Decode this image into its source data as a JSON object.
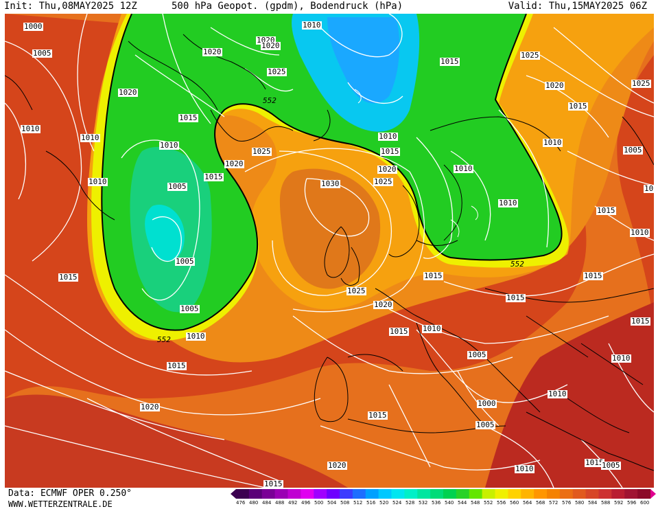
{
  "header": {
    "init": "Init: Thu,08MAY2025 12Z",
    "title": "500 hPa Geopot. (gpdm), Bodendruck (hPa)",
    "valid": "Valid: Thu,15MAY2025 06Z"
  },
  "footer": {
    "data_source": "Data: ECMWF OPER 0.250°",
    "website": "WWW.WETTERZENTRALE.DE"
  },
  "colorbar": {
    "labels": [
      "476",
      "480",
      "484",
      "488",
      "492",
      "496",
      "500",
      "504",
      "508",
      "512",
      "516",
      "520",
      "524",
      "528",
      "532",
      "536",
      "540",
      "544",
      "548",
      "552",
      "556",
      "560",
      "564",
      "568",
      "572",
      "576",
      "580",
      "584",
      "588",
      "592",
      "596",
      "600"
    ],
    "colors": [
      "#3c0050",
      "#5a0078",
      "#7a0096",
      "#9b00b4",
      "#c000d2",
      "#e000f0",
      "#a000ff",
      "#6e00ff",
      "#3c3cff",
      "#1e6eff",
      "#00a0ff",
      "#00c8ff",
      "#00e6f0",
      "#00f0c8",
      "#00e6a0",
      "#00dc78",
      "#00d250",
      "#28d228",
      "#64e600",
      "#c8f000",
      "#f0f000",
      "#ffd200",
      "#ffb400",
      "#ff9600",
      "#f58200",
      "#eb6e14",
      "#e15a1e",
      "#d74628",
      "#cd3232",
      "#b91e32",
      "#a01432",
      "#8c0a28"
    ]
  },
  "map": {
    "contour_552_label": "552",
    "pressure_labels": [
      {
        "text": "1000",
        "k": "a"
      },
      {
        "text": "1005",
        "k": "b"
      },
      {
        "text": "1020",
        "k": "c"
      },
      {
        "text": "1010",
        "k": "d"
      },
      {
        "text": "1010",
        "k": "e"
      },
      {
        "text": "1010",
        "k": "f"
      },
      {
        "text": "1015",
        "k": "g"
      },
      {
        "text": "1010",
        "k": "h"
      },
      {
        "text": "1005",
        "k": "i"
      },
      {
        "text": "1015",
        "k": "j"
      },
      {
        "text": "1005",
        "k": "k"
      },
      {
        "text": "1005",
        "k": "l"
      },
      {
        "text": "1010",
        "k": "m"
      },
      {
        "text": "1015",
        "k": "n"
      },
      {
        "text": "1020",
        "k": "o"
      },
      {
        "text": "1020",
        "k": "p"
      },
      {
        "text": "1010",
        "k": "q"
      },
      {
        "text": "1020",
        "k": "r"
      },
      {
        "text": "1020",
        "k": "s"
      },
      {
        "text": "1025",
        "k": "t"
      },
      {
        "text": "1015",
        "k": "u"
      },
      {
        "text": "1025",
        "k": "v"
      },
      {
        "text": "1020",
        "k": "w"
      },
      {
        "text": "1030",
        "k": "x"
      },
      {
        "text": "1025",
        "k": "y"
      },
      {
        "text": "1020",
        "k": "z"
      },
      {
        "text": "1010",
        "k": "aa"
      },
      {
        "text": "1015",
        "k": "ab"
      },
      {
        "text": "1020",
        "k": "ac"
      },
      {
        "text": "1025",
        "k": "ad"
      },
      {
        "text": "1015",
        "k": "ae"
      },
      {
        "text": "1025",
        "k": "af"
      },
      {
        "text": "1020",
        "k": "ag"
      },
      {
        "text": "1015",
        "k": "ah"
      },
      {
        "text": "1010",
        "k": "ai"
      },
      {
        "text": "1005",
        "k": "aj"
      },
      {
        "text": "1010",
        "k": "ak"
      },
      {
        "text": "1010",
        "k": "al"
      },
      {
        "text": "1015",
        "k": "am"
      },
      {
        "text": "1010",
        "k": "an"
      },
      {
        "text": "1015",
        "k": "ao"
      },
      {
        "text": "1015",
        "k": "ap"
      },
      {
        "text": "1015",
        "k": "aq"
      },
      {
        "text": "1015",
        "k": "ar"
      },
      {
        "text": "1015",
        "k": "as"
      },
      {
        "text": "1010",
        "k": "at"
      },
      {
        "text": "1005",
        "k": "au"
      },
      {
        "text": "1000",
        "k": "av"
      },
      {
        "text": "1010",
        "k": "aw"
      },
      {
        "text": "1005",
        "k": "ax"
      },
      {
        "text": "1015",
        "k": "ay"
      },
      {
        "text": "1005",
        "k": "az"
      },
      {
        "text": "1010",
        "k": "ba"
      },
      {
        "text": "1010",
        "k": "bb"
      },
      {
        "text": "1015",
        "k": "bc"
      },
      {
        "text": "1020",
        "k": "bd"
      },
      {
        "text": "1015",
        "k": "be"
      },
      {
        "text": "1025",
        "k": "bf"
      },
      {
        "text": "1020",
        "k": "bg"
      },
      {
        "text": "1015",
        "k": "bh"
      },
      {
        "text": "1015",
        "k": "bi"
      },
      {
        "text": "1020",
        "k": "bj"
      },
      {
        "text": "1010",
        "k": "bk"
      },
      {
        "text": "1005",
        "k": "bl"
      },
      {
        "text": "1010",
        "k": "bm"
      },
      {
        "text": "1010",
        "k": "bn"
      },
      {
        "text": "1015",
        "k": "bo"
      },
      {
        "text": "1015",
        "k": "bp"
      }
    ]
  }
}
